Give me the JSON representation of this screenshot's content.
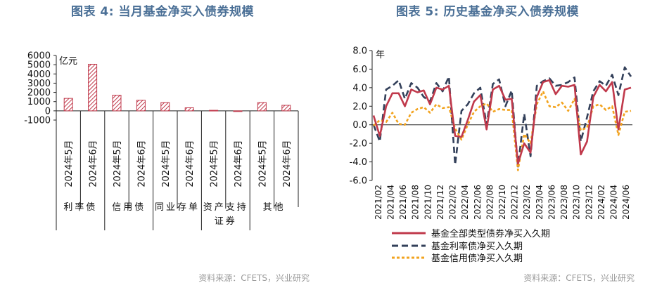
{
  "left": {
    "title": "图表 4:   当月基金净买入债券规模",
    "source": "资料来源：CFETS，兴业研究",
    "unit_label": "亿元"
  },
  "right": {
    "title": "图表 5:   历史基金净买入债券规模",
    "source": "资料来源：CFETS，兴业研究",
    "unit_label": "年"
  },
  "colors": {
    "title": "#4a6f96",
    "bar": "#c0394b",
    "total": "#c0394b",
    "rate": "#33405a",
    "credit": "#f2a31e"
  },
  "chart_data": [
    {
      "type": "bar",
      "ylabel": "亿元",
      "ylim": [
        -1000,
        6000
      ],
      "yticks": [
        -1000,
        0,
        1000,
        2000,
        3000,
        4000,
        5000,
        6000
      ],
      "categories": [
        "2024年5月",
        "2024年6月",
        "2024年5月",
        "2024年6月",
        "2024年5月",
        "2024年6月",
        "2024年5月",
        "2024年6月",
        "2024年5月",
        "2024年6月"
      ],
      "groups": [
        "利率债",
        "信用债",
        "同业存单",
        "资产支持证券",
        "其他"
      ],
      "values": [
        1350,
        5050,
        1700,
        1150,
        900,
        330,
        60,
        -30,
        900,
        600
      ]
    },
    {
      "type": "line",
      "ylabel": "年",
      "ylim": [
        -6,
        8
      ],
      "yticks": [
        "8.0",
        "6.0",
        "4.0",
        "2.0",
        "0.0",
        "-2.0",
        "-4.0",
        "-6.0"
      ],
      "x_ticks": [
        "2021/02",
        "2021/04",
        "2021/06",
        "2021/08",
        "2021/10",
        "2021/12",
        "2022/02",
        "2022/04",
        "2022/06",
        "2022/08",
        "2022/10",
        "2022/12",
        "2023/02",
        "2023/04",
        "2023/06",
        "2023/08",
        "2023/10",
        "2023/12",
        "2024/02",
        "2024/04",
        "2024/06"
      ],
      "series": [
        {
          "name": "基金全部类型债券净买入久期",
          "style": "solid",
          "values": [
            1.0,
            -1.2,
            2.0,
            3.4,
            3.4,
            2.0,
            3.8,
            3.5,
            3.7,
            2.2,
            4.0,
            3.8,
            4.2,
            -1.2,
            -1.3,
            0.5,
            2.5,
            3.2,
            -0.5,
            3.8,
            4.2,
            2.7,
            2.8,
            -4.2,
            -2.0,
            -3.0,
            3.0,
            4.6,
            4.8,
            3.3,
            4.2,
            4.1,
            4.3,
            -3.2,
            -1.8,
            3.0,
            4.3,
            3.6,
            4.6,
            -0.5,
            3.8,
            4.0
          ]
        },
        {
          "name": "基金利率债净买入久期",
          "style": "dash",
          "values": [
            0.0,
            -1.8,
            3.8,
            4.2,
            4.8,
            2.8,
            4.5,
            4.0,
            3.0,
            2.5,
            4.5,
            3.6,
            5.2,
            -4.3,
            1.5,
            2.2,
            3.4,
            4.0,
            0.0,
            4.4,
            4.9,
            2.0,
            3.7,
            -4.5,
            1.2,
            -3.4,
            4.2,
            4.7,
            5.0,
            4.2,
            4.3,
            4.6,
            5.1,
            -1.8,
            0.8,
            3.6,
            4.7,
            4.2,
            5.4,
            3.2,
            6.2,
            5.2
          ]
        },
        {
          "name": "基金信用债净买入久期",
          "style": "dot",
          "values": [
            -0.1,
            0.5,
            0.3,
            1.3,
            0.1,
            0.0,
            1.3,
            1.7,
            1.9,
            1.3,
            2.2,
            1.8,
            1.9,
            -0.4,
            -1.6,
            0.0,
            1.4,
            2.0,
            2.3,
            1.4,
            1.7,
            1.6,
            1.6,
            -4.9,
            -1.0,
            -2.0,
            2.2,
            3.6,
            2.0,
            1.9,
            2.4,
            1.5,
            2.8,
            -0.6,
            -0.3,
            2.0,
            2.2,
            1.6,
            2.0,
            -1.1,
            1.4,
            1.5
          ]
        }
      ]
    }
  ]
}
